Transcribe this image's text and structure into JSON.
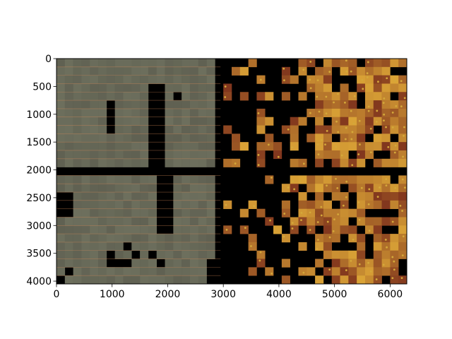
{
  "chart_data": {
    "type": "heatmap",
    "title": "",
    "xlabel": "",
    "ylabel": "",
    "xlim": [
      0,
      6300
    ],
    "ylim": [
      4050,
      0
    ],
    "y_inverted": true,
    "grid": false,
    "x_ticks": [
      0,
      1000,
      2000,
      3000,
      4000,
      5000,
      6000
    ],
    "y_ticks": [
      0,
      500,
      1000,
      1500,
      2000,
      2500,
      3000,
      3500,
      4000
    ],
    "x_tick_labels": [
      "0",
      "1000",
      "2000",
      "3000",
      "4000",
      "5000",
      "6000"
    ],
    "y_tick_labels": [
      "0",
      "500",
      "1000",
      "1500",
      "2000",
      "2500",
      "3000",
      "3500",
      "4000"
    ],
    "tile_size": 150,
    "left_panel_x_max": 3000,
    "colors": {
      "masked": "#000000",
      "left_background": "#6a6d5c",
      "left_lines": "#d88a5a",
      "right_base": "#8a3a22",
      "right_highlight": "#d4a83a"
    }
  }
}
